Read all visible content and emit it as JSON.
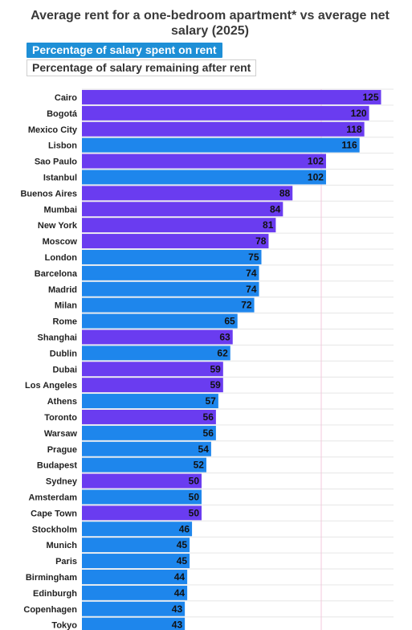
{
  "header": {
    "title": "Average rent for a one-bedroom apartment* vs average net salary (2025)"
  },
  "toggles": {
    "active_label": "Percentage of salary spent on rent",
    "inactive_label": "Percentage of salary remaining after rent"
  },
  "colors": {
    "purple": "#6a3cf0",
    "blue": "#1e86ec",
    "active_toggle": "#1e8fd6"
  },
  "chart_data": {
    "type": "bar",
    "orientation": "horizontal",
    "title": "Average rent for a one-bedroom apartment* vs average net salary (2025)",
    "xlim": [
      0,
      170
    ],
    "reference_line": 100,
    "grid": true,
    "categories": [
      "Cairo",
      "Bogotá",
      "Mexico City",
      "Lisbon",
      "Sao Paulo",
      "Istanbul",
      "Buenos Aires",
      "Mumbai",
      "New York",
      "Moscow",
      "London",
      "Barcelona",
      "Madrid",
      "Milan",
      "Rome",
      "Shanghai",
      "Dublin",
      "Dubai",
      "Los Angeles",
      "Athens",
      "Toronto",
      "Warsaw",
      "Prague",
      "Budapest",
      "Sydney",
      "Amsterdam",
      "Cape Town",
      "Stockholm",
      "Munich",
      "Paris",
      "Birmingham",
      "Edinburgh",
      "Copenhagen",
      "Tokyo"
    ],
    "values": [
      125,
      120,
      118,
      116,
      102,
      102,
      88,
      84,
      81,
      78,
      75,
      74,
      74,
      72,
      65,
      63,
      62,
      59,
      59,
      57,
      56,
      56,
      54,
      52,
      50,
      50,
      50,
      46,
      45,
      45,
      44,
      44,
      43,
      43
    ],
    "color_group": [
      "purple",
      "purple",
      "purple",
      "blue",
      "purple",
      "blue",
      "purple",
      "purple",
      "purple",
      "purple",
      "blue",
      "blue",
      "blue",
      "blue",
      "blue",
      "purple",
      "blue",
      "purple",
      "purple",
      "blue",
      "purple",
      "blue",
      "blue",
      "blue",
      "purple",
      "blue",
      "purple",
      "blue",
      "blue",
      "blue",
      "blue",
      "blue",
      "blue",
      "blue"
    ]
  }
}
